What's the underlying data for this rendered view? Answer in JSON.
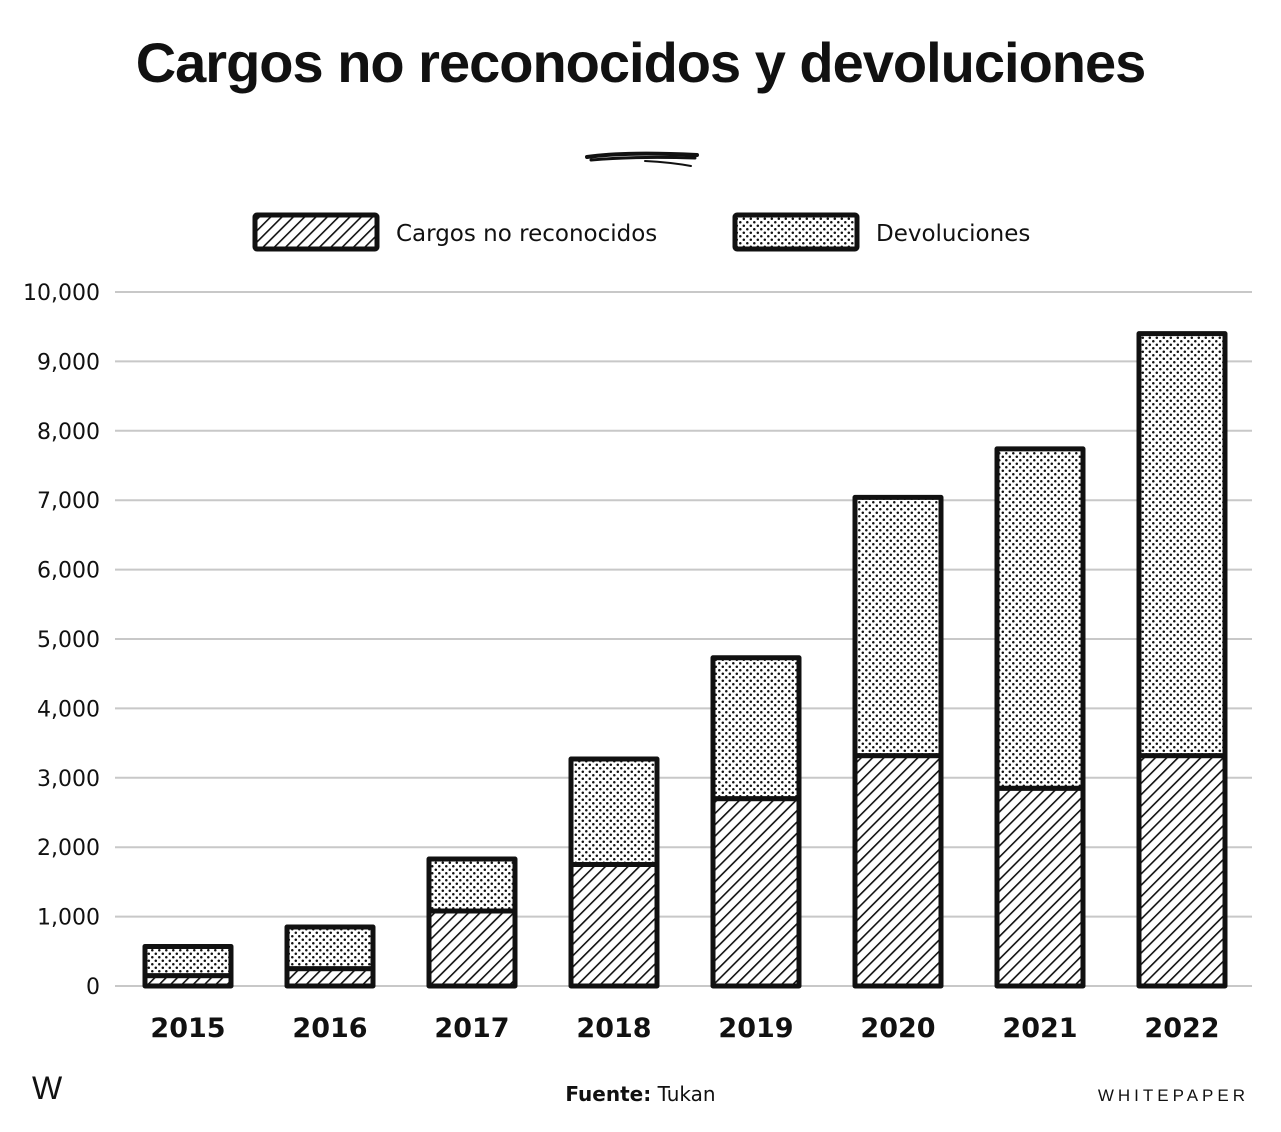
{
  "title": "Cargos no reconocidos y devoluciones",
  "footer": {
    "logo": "W",
    "source_label": "Fuente:",
    "source_value": "Tukan",
    "brand": "WHITEPAPER"
  },
  "chart_data": {
    "type": "bar",
    "stacked": true,
    "title": "Cargos no reconocidos y devoluciones",
    "xlabel": "",
    "ylabel": "",
    "categories": [
      "2015",
      "2016",
      "2017",
      "2018",
      "2019",
      "2020",
      "2021",
      "2022"
    ],
    "series": [
      {
        "name": "Cargos no reconocidos",
        "pattern": "diagonal-hatch",
        "values": [
          150,
          250,
          1080,
          1750,
          2700,
          3320,
          2850,
          3320
        ]
      },
      {
        "name": "Devoluciones",
        "pattern": "dots",
        "values": [
          420,
          600,
          750,
          1520,
          2030,
          3720,
          4890,
          6080
        ]
      }
    ],
    "ylim": [
      0,
      10000
    ],
    "yticks": [
      0,
      1000,
      2000,
      3000,
      4000,
      5000,
      6000,
      7000,
      8000,
      9000,
      10000
    ],
    "ytick_labels": [
      "0",
      "1,000",
      "2,000",
      "3,000",
      "4,000",
      "5,000",
      "6,000",
      "7,000",
      "8,000",
      "9,000",
      "10,000"
    ],
    "grid": true,
    "legend_position": "top-center",
    "colors": {
      "stroke": "#111111",
      "grid": "#c8c8c8",
      "background": "#ffffff"
    }
  }
}
